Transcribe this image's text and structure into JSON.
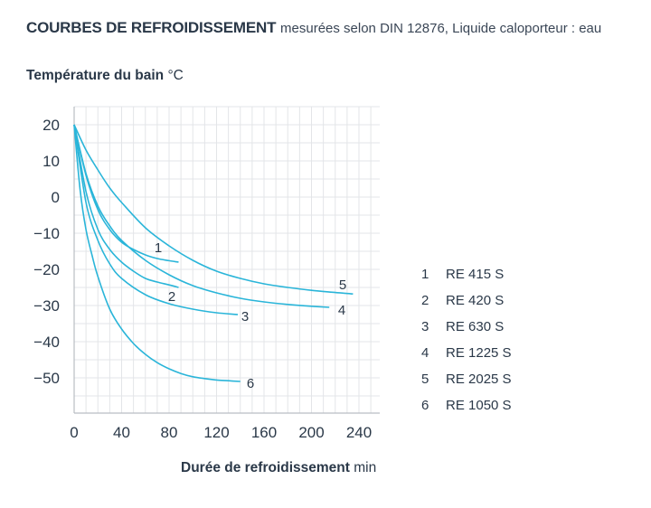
{
  "title": {
    "bold": "COURBES DE REFROIDISSEMENT",
    "rest": "mesurées selon DIN 12876, Liquide caloporteur : eau"
  },
  "colors": {
    "curve": "#2ab5d9",
    "grid": "#e3e5e8",
    "axis": "#b9bdc3",
    "text": "#2a3848"
  },
  "chart_data": {
    "type": "line",
    "ylabel_bold": "Température du bain",
    "ylabel_unit": "°C",
    "xlabel_bold": "Durée de refroidissement",
    "xlabel_unit": "min",
    "xlim": [
      0,
      250
    ],
    "ylim": [
      -60,
      25
    ],
    "x_ticks": [
      0,
      40,
      80,
      120,
      160,
      200,
      240
    ],
    "y_ticks": [
      20,
      10,
      0,
      -10,
      -20,
      -30,
      -40,
      -50
    ],
    "x_tick_labels": [
      "0",
      "40",
      "80",
      "120",
      "160",
      "200",
      "240"
    ],
    "y_tick_labels": [
      "20",
      "10",
      "0",
      "−10",
      "−20",
      "−30",
      "−40",
      "−50"
    ],
    "grid": true,
    "legend_position": "right",
    "series": [
      {
        "label": "1",
        "name": "RE 415 S",
        "x": [
          0,
          10,
          20,
          30,
          40,
          50,
          60,
          70,
          80,
          88
        ],
        "y": [
          20,
          6,
          -3.5,
          -9,
          -12.5,
          -14.5,
          -16,
          -17,
          -17.6,
          -18
        ]
      },
      {
        "label": "2",
        "name": "RE 420 S",
        "x": [
          0,
          10,
          20,
          30,
          40,
          50,
          60,
          70,
          80,
          88
        ],
        "y": [
          20,
          1.5,
          -9,
          -14.5,
          -18,
          -20.5,
          -22.5,
          -23.5,
          -24.3,
          -25
        ]
      },
      {
        "label": "3",
        "name": "RE 630 S",
        "x": [
          0,
          10,
          20,
          30,
          40,
          60,
          80,
          100,
          120,
          138
        ],
        "y": [
          20,
          -1.5,
          -12,
          -18.5,
          -22.5,
          -27,
          -29.5,
          -31,
          -32,
          -32.5
        ]
      },
      {
        "label": "4",
        "name": "RE 1225 S",
        "x": [
          0,
          10,
          20,
          30,
          40,
          60,
          80,
          100,
          120,
          140,
          160,
          180,
          200,
          215
        ],
        "y": [
          20,
          6.5,
          -2.5,
          -8,
          -12,
          -17.5,
          -21.5,
          -24.5,
          -26.5,
          -28,
          -29,
          -29.7,
          -30.2,
          -30.5
        ]
      },
      {
        "label": "5",
        "name": "RE 2025 S",
        "x": [
          0,
          10,
          20,
          30,
          40,
          60,
          80,
          100,
          120,
          140,
          160,
          180,
          200,
          220,
          235
        ],
        "y": [
          20,
          13,
          7.5,
          2.5,
          -1.5,
          -8.5,
          -13.5,
          -17.5,
          -20.5,
          -22.5,
          -24,
          -25,
          -25.8,
          -26.4,
          -26.8
        ]
      },
      {
        "label": "6",
        "name": "RE 1050 S",
        "x": [
          0,
          5,
          10,
          15,
          20,
          30,
          40,
          50,
          60,
          70,
          80,
          90,
          100,
          110,
          120,
          130,
          140
        ],
        "y": [
          20,
          2,
          -9,
          -16,
          -22,
          -31,
          -36.5,
          -40.5,
          -43.5,
          -45.8,
          -47.5,
          -48.8,
          -49.7,
          -50.2,
          -50.6,
          -50.8,
          -51
        ]
      }
    ]
  }
}
